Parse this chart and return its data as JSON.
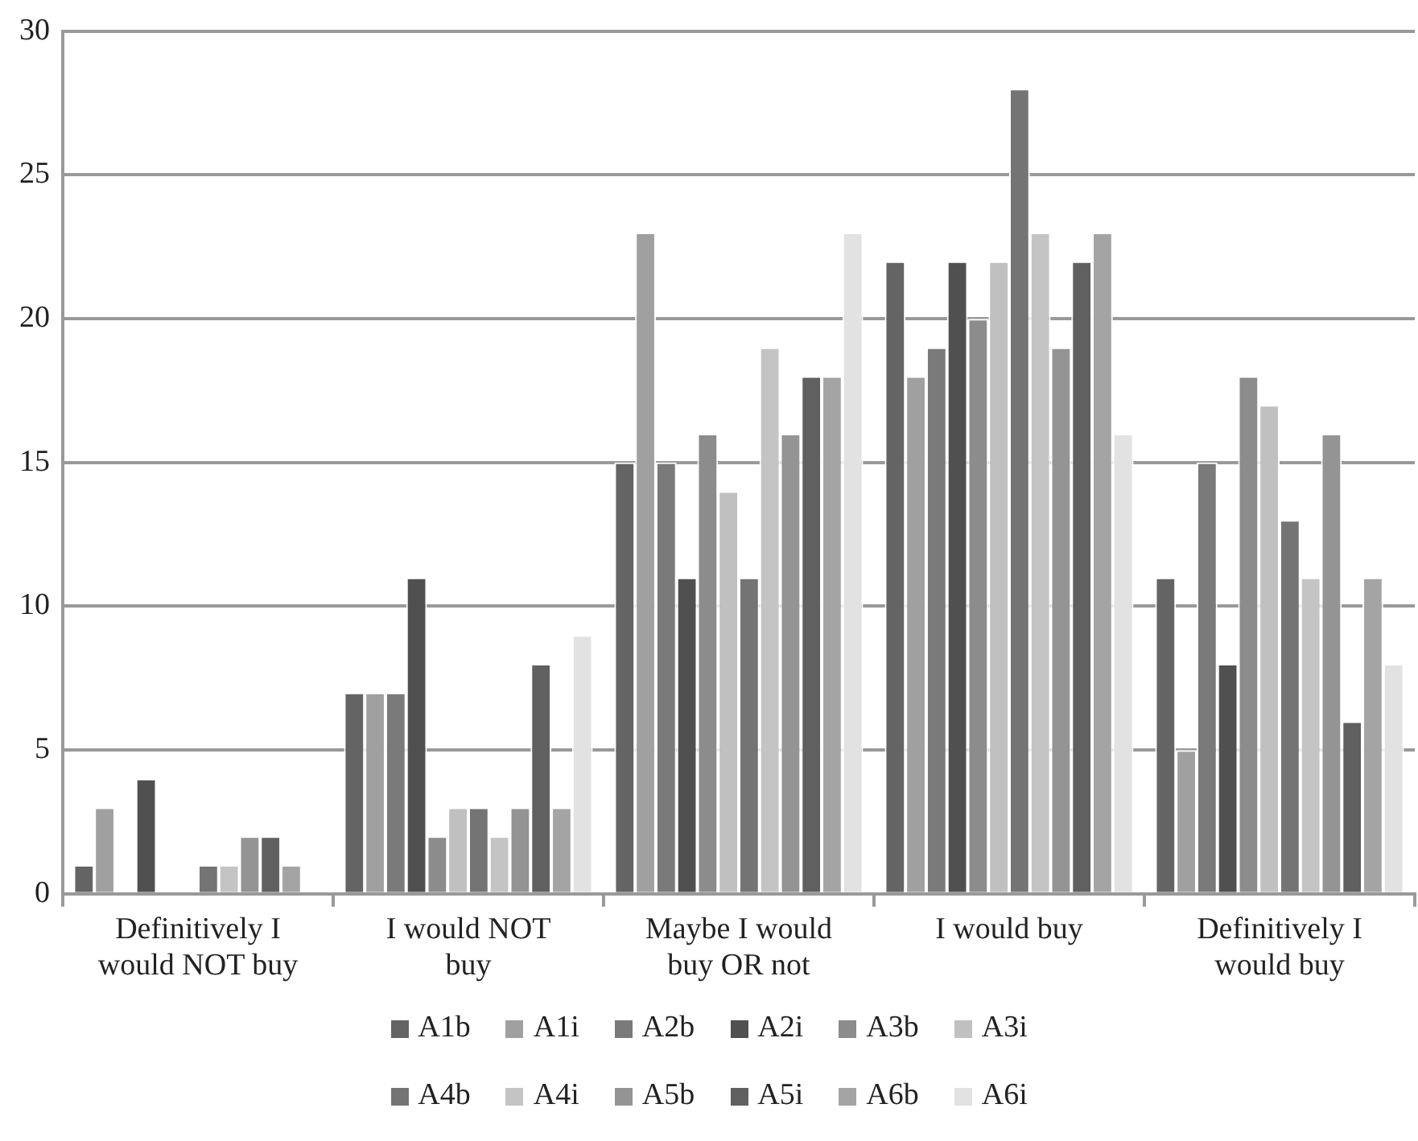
{
  "chart_data": {
    "type": "bar",
    "categories": [
      "Definitively I would NOT buy",
      "I would NOT buy",
      "Maybe I would buy OR not",
      "I would buy",
      "Definitively I would buy"
    ],
    "ylim": [
      0,
      30
    ],
    "yticks": [
      0,
      5,
      10,
      15,
      20,
      25,
      30
    ],
    "grid": "y",
    "legend": "bottom",
    "series": [
      {
        "name": "A1b",
        "color": "#646464",
        "values": [
          1,
          7,
          15,
          22,
          11
        ]
      },
      {
        "name": "A1i",
        "color": "#a0a0a0",
        "values": [
          3,
          7,
          23,
          18,
          5
        ]
      },
      {
        "name": "A2b",
        "color": "#7a7a7a",
        "values": [
          0,
          7,
          15,
          19,
          15
        ]
      },
      {
        "name": "A2i",
        "color": "#505050",
        "values": [
          4,
          11,
          11,
          22,
          8
        ]
      },
      {
        "name": "A3b",
        "color": "#8c8c8c",
        "values": [
          0,
          2,
          16,
          20,
          18
        ]
      },
      {
        "name": "A3i",
        "color": "#c0c0c0",
        "values": [
          0,
          3,
          14,
          22,
          17
        ]
      },
      {
        "name": "A4b",
        "color": "#747474",
        "values": [
          1,
          3,
          11,
          28,
          13
        ]
      },
      {
        "name": "A4i",
        "color": "#c4c4c4",
        "values": [
          1,
          2,
          19,
          23,
          11
        ]
      },
      {
        "name": "A5b",
        "color": "#949494",
        "values": [
          2,
          3,
          16,
          19,
          16
        ]
      },
      {
        "name": "A5i",
        "color": "#606060",
        "values": [
          2,
          8,
          18,
          22,
          6
        ]
      },
      {
        "name": "A6b",
        "color": "#a4a4a4",
        "values": [
          1,
          3,
          18,
          23,
          11
        ]
      },
      {
        "name": "A6i",
        "color": "#e2e2e2",
        "values": [
          0,
          9,
          23,
          16,
          8
        ]
      }
    ]
  }
}
